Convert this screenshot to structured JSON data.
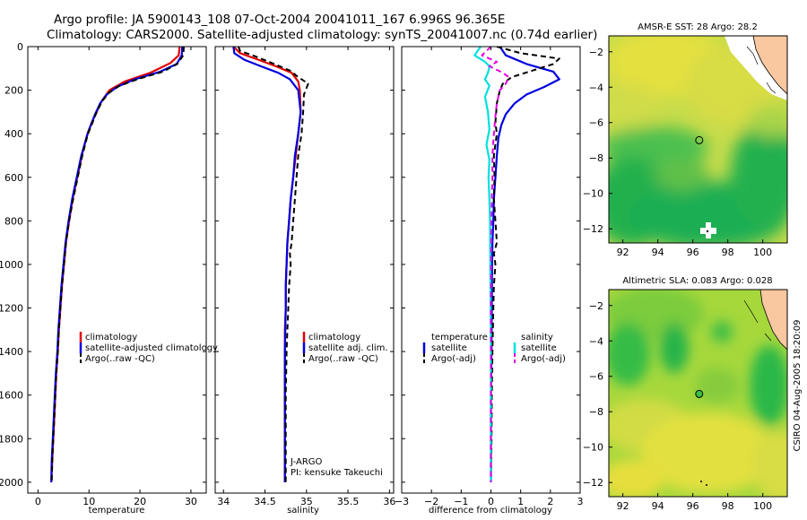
{
  "header": {
    "line1": "Argo profile: JA 5900143_108 07-Oct-2004 20041011_167 6.996S 96.365E",
    "line2": "Climatology: CARS2000. Satellite-adjusted climatology: synTS_20041007.nc (0.74d earlier)"
  },
  "footer": {
    "credit": "CSIRO 04-Aug-2005 18:20:09"
  },
  "colors": {
    "red": "#e00000",
    "blue": "#0000e0",
    "black": "#000000",
    "cyan": "#00e0e0",
    "magenta": "#e000e0"
  },
  "chart_data": [
    {
      "type": "line",
      "name": "temperature-profile",
      "xlabel": "temperature",
      "xlim": [
        -2,
        33
      ],
      "ylim": [
        2050,
        0
      ],
      "xticks": [
        0,
        10,
        20,
        30
      ],
      "yticks": [
        0,
        200,
        400,
        600,
        800,
        1000,
        1200,
        1400,
        1600,
        1800,
        2000
      ],
      "legend": {
        "position": "lower-right",
        "items": [
          "climatology",
          "satellite-adjusted climatology",
          "Argo(..raw -QC)"
        ]
      },
      "series": [
        {
          "name": "climatology",
          "color": "red",
          "style": "solid",
          "points": [
            [
              27.8,
              0
            ],
            [
              27.6,
              40
            ],
            [
              26,
              75
            ],
            [
              22,
              120
            ],
            [
              17,
              160
            ],
            [
              14,
              200
            ],
            [
              12.5,
              250
            ],
            [
              11.5,
              300
            ],
            [
              10.5,
              350
            ],
            [
              9.7,
              400
            ],
            [
              8.6,
              500
            ],
            [
              7.7,
              600
            ],
            [
              6.8,
              700
            ],
            [
              6.1,
              800
            ],
            [
              5.5,
              900
            ],
            [
              5.1,
              1000
            ],
            [
              4.7,
              1100
            ],
            [
              4.4,
              1200
            ],
            [
              4.1,
              1300
            ],
            [
              3.9,
              1400
            ],
            [
              3.6,
              1500
            ],
            [
              3.4,
              1600
            ],
            [
              3.2,
              1700
            ],
            [
              3.0,
              1800
            ],
            [
              2.8,
              1900
            ],
            [
              2.6,
              2000
            ]
          ]
        },
        {
          "name": "satellite-adjusted climatology",
          "color": "blue",
          "style": "solid",
          "points": [
            [
              28.3,
              0
            ],
            [
              28.2,
              40
            ],
            [
              27.2,
              80
            ],
            [
              24,
              115
            ],
            [
              19,
              150
            ],
            [
              15.5,
              185
            ],
            [
              13.5,
              220
            ],
            [
              12.2,
              260
            ],
            [
              11.2,
              310
            ],
            [
              10.2,
              370
            ],
            [
              9.6,
              410
            ],
            [
              8.5,
              500
            ],
            [
              7.6,
              600
            ],
            [
              6.7,
              700
            ],
            [
              6.0,
              800
            ],
            [
              5.4,
              900
            ],
            [
              5.0,
              1000
            ],
            [
              4.6,
              1100
            ],
            [
              4.3,
              1200
            ],
            [
              4.0,
              1300
            ],
            [
              3.8,
              1400
            ],
            [
              3.5,
              1500
            ],
            [
              3.3,
              1600
            ],
            [
              3.1,
              1700
            ],
            [
              2.9,
              1800
            ],
            [
              2.7,
              1900
            ],
            [
              2.6,
              2000
            ]
          ]
        },
        {
          "name": "Argo(..raw -QC)",
          "color": "black",
          "style": "dashed",
          "points": [
            [
              28.6,
              0
            ],
            [
              28.5,
              40
            ],
            [
              27.3,
              80
            ],
            [
              24.5,
              115
            ],
            [
              19.5,
              150
            ],
            [
              16,
              180
            ],
            [
              14,
              210
            ],
            [
              12.6,
              250
            ],
            [
              11.5,
              300
            ],
            [
              10.5,
              360
            ],
            [
              9.8,
              400
            ],
            [
              8.7,
              500
            ],
            [
              7.8,
              600
            ],
            [
              6.9,
              700
            ],
            [
              6.1,
              800
            ],
            [
              5.5,
              900
            ],
            [
              5.1,
              1000
            ],
            [
              4.7,
              1100
            ],
            [
              4.4,
              1200
            ],
            [
              4.1,
              1300
            ],
            [
              3.9,
              1400
            ],
            [
              3.6,
              1500
            ],
            [
              3.4,
              1600
            ],
            [
              3.2,
              1700
            ],
            [
              3.0,
              1800
            ],
            [
              2.8,
              1900
            ],
            [
              2.7,
              2000
            ]
          ]
        }
      ]
    },
    {
      "type": "line",
      "name": "salinity-profile",
      "xlabel": "salinity",
      "xlim": [
        33.9,
        36.05
      ],
      "ylim": [
        2050,
        0
      ],
      "xticks": [
        34,
        34.5,
        35,
        35.5,
        36
      ],
      "legend": {
        "position": "lower-right",
        "items": [
          "climatology",
          "satellite adj. clim.",
          "Argo(..raw -QC)"
        ]
      },
      "annotation": [
        "J-ARGO",
        "PI: kensuke Takeuchi"
      ],
      "series": [
        {
          "name": "climatology",
          "color": "red",
          "style": "solid",
          "points": [
            [
              34.12,
              0
            ],
            [
              34.2,
              30
            ],
            [
              34.42,
              60
            ],
            [
              34.63,
              90
            ],
            [
              34.82,
              120
            ],
            [
              34.9,
              160
            ],
            [
              34.92,
              200
            ],
            [
              34.93,
              300
            ],
            [
              34.9,
              400
            ],
            [
              34.87,
              500
            ],
            [
              34.84,
              600
            ],
            [
              34.81,
              700
            ],
            [
              34.79,
              800
            ],
            [
              34.77,
              900
            ],
            [
              34.76,
              1000
            ],
            [
              34.75,
              1100
            ],
            [
              34.75,
              1200
            ],
            [
              34.74,
              1300
            ],
            [
              34.74,
              1400
            ],
            [
              34.74,
              1600
            ],
            [
              34.74,
              2000
            ]
          ]
        },
        {
          "name": "satellite adj. clim.",
          "color": "blue",
          "style": "solid",
          "points": [
            [
              34.12,
              0
            ],
            [
              34.13,
              30
            ],
            [
              34.25,
              60
            ],
            [
              34.45,
              90
            ],
            [
              34.66,
              120
            ],
            [
              34.8,
              150
            ],
            [
              34.9,
              200
            ],
            [
              34.93,
              300
            ],
            [
              34.9,
              400
            ],
            [
              34.86,
              500
            ],
            [
              34.84,
              600
            ],
            [
              34.81,
              700
            ],
            [
              34.79,
              800
            ],
            [
              34.77,
              900
            ],
            [
              34.76,
              1000
            ],
            [
              34.75,
              1100
            ],
            [
              34.75,
              1200
            ],
            [
              34.74,
              1400
            ],
            [
              34.74,
              1600
            ],
            [
              34.74,
              2000
            ]
          ]
        },
        {
          "name": "Argo(..raw -QC)",
          "color": "black",
          "style": "dashed",
          "points": [
            [
              34.18,
              0
            ],
            [
              34.2,
              20
            ],
            [
              34.35,
              40
            ],
            [
              34.55,
              70
            ],
            [
              34.8,
              110
            ],
            [
              34.9,
              140
            ],
            [
              35.02,
              170
            ],
            [
              34.97,
              220
            ],
            [
              34.96,
              300
            ],
            [
              34.94,
              400
            ],
            [
              34.9,
              500
            ],
            [
              34.88,
              600
            ],
            [
              34.86,
              700
            ],
            [
              34.84,
              800
            ],
            [
              34.82,
              900
            ],
            [
              34.8,
              950
            ],
            [
              34.81,
              1000
            ],
            [
              34.79,
              1100
            ],
            [
              34.78,
              1200
            ],
            [
              34.77,
              1300
            ],
            [
              34.76,
              1400
            ],
            [
              34.75,
              1600
            ],
            [
              34.75,
              2000
            ]
          ]
        }
      ]
    },
    {
      "type": "line",
      "name": "difference-profile",
      "xlabel": "difference from climatology",
      "xlim": [
        -3,
        3
      ],
      "ylim": [
        2050,
        0
      ],
      "xticks": [
        -3,
        -2,
        -1,
        0,
        1,
        2,
        3
      ],
      "legend": {
        "position": "lower-center",
        "group1_title": "temperature",
        "group2_title": "salinity",
        "items": [
          "satellite",
          "Argo(-adj)",
          "satellite",
          "Argo(-adj)"
        ]
      },
      "series": [
        {
          "name": "temperature satellite",
          "color": "blue",
          "style": "solid",
          "points": [
            [
              0.3,
              0
            ],
            [
              0.5,
              40
            ],
            [
              1.2,
              80
            ],
            [
              2.1,
              115
            ],
            [
              2.3,
              150
            ],
            [
              1.8,
              185
            ],
            [
              1.2,
              220
            ],
            [
              0.8,
              260
            ],
            [
              0.5,
              310
            ],
            [
              0.35,
              360
            ],
            [
              0.25,
              420
            ],
            [
              0.2,
              500
            ],
            [
              0.15,
              600
            ],
            [
              0.1,
              700
            ],
            [
              0.08,
              800
            ],
            [
              0.05,
              900
            ],
            [
              0.04,
              1000
            ],
            [
              0.03,
              1200
            ],
            [
              0.02,
              1400
            ],
            [
              0.0,
              1600
            ],
            [
              0.0,
              2000
            ]
          ]
        },
        {
          "name": "temperature Argo(-adj)",
          "color": "black",
          "style": "dashed",
          "points": [
            [
              0.2,
              0
            ],
            [
              1.0,
              30
            ],
            [
              2.3,
              55
            ],
            [
              2.1,
              80
            ],
            [
              1.4,
              110
            ],
            [
              0.7,
              140
            ],
            [
              0.4,
              170
            ],
            [
              0.3,
              200
            ],
            [
              0.2,
              260
            ],
            [
              0.15,
              350
            ],
            [
              0.2,
              400
            ],
            [
              0.1,
              500
            ],
            [
              0.12,
              600
            ],
            [
              0.1,
              700
            ],
            [
              0.15,
              800
            ],
            [
              0.2,
              900
            ],
            [
              0.1,
              950
            ],
            [
              0.15,
              1000
            ],
            [
              0.1,
              1100
            ],
            [
              0.08,
              1200
            ],
            [
              0.05,
              1400
            ],
            [
              0.03,
              1600
            ],
            [
              0.02,
              1800
            ],
            [
              0.0,
              2000
            ]
          ]
        },
        {
          "name": "salinity satellite",
          "color": "cyan",
          "style": "solid",
          "points": [
            [
              -0.35,
              0
            ],
            [
              -0.55,
              40
            ],
            [
              -0.2,
              70
            ],
            [
              -0.05,
              90
            ],
            [
              -0.1,
              120
            ],
            [
              -0.2,
              150
            ],
            [
              -0.05,
              180
            ],
            [
              -0.2,
              230
            ],
            [
              -0.1,
              300
            ],
            [
              -0.05,
              380
            ],
            [
              -0.15,
              450
            ],
            [
              -0.05,
              520
            ],
            [
              -0.08,
              600
            ],
            [
              -0.05,
              700
            ],
            [
              -0.03,
              800
            ],
            [
              -0.02,
              1000
            ],
            [
              -0.01,
              1200
            ],
            [
              0.0,
              1400
            ],
            [
              0.0,
              2000
            ]
          ]
        },
        {
          "name": "salinity Argo(-adj)",
          "color": "magenta",
          "style": "dashed",
          "points": [
            [
              0.0,
              0
            ],
            [
              -0.3,
              40
            ],
            [
              0.2,
              70
            ],
            [
              -0.05,
              90
            ],
            [
              0.4,
              120
            ],
            [
              0.6,
              140
            ],
            [
              0.5,
              170
            ],
            [
              0.3,
              200
            ],
            [
              0.2,
              260
            ],
            [
              0.15,
              320
            ],
            [
              0.1,
              400
            ],
            [
              0.05,
              500
            ],
            [
              0.05,
              600
            ],
            [
              0.03,
              700
            ],
            [
              0.02,
              800
            ],
            [
              0.01,
              1000
            ],
            [
              0.0,
              1200
            ],
            [
              0.0,
              1600
            ],
            [
              0.0,
              2000
            ]
          ]
        }
      ]
    },
    {
      "type": "heatmap",
      "name": "sst-map",
      "title": "AMSR-E SST: 28 Argo: 28.2",
      "xlim": [
        91.2,
        101.4
      ],
      "ylim": [
        -12.8,
        -1.1
      ],
      "xticks": [
        92,
        94,
        96,
        98,
        100
      ],
      "yticks": [
        -2,
        -4,
        -6,
        -8,
        -10,
        -12
      ],
      "argo_location": {
        "lon": 96.365,
        "lat": -6.996
      }
    },
    {
      "type": "heatmap",
      "name": "sla-map",
      "title": "Altimetric SLA: 0.083 Argo: 0.028",
      "xlim": [
        91.2,
        101.4
      ],
      "ylim": [
        -12.8,
        -1.1
      ],
      "xticks": [
        92,
        94,
        96,
        98,
        100
      ],
      "yticks": [
        -2,
        -4,
        -6,
        -8,
        -10,
        -12
      ],
      "argo_location": {
        "lon": 96.365,
        "lat": -6.996
      }
    }
  ]
}
